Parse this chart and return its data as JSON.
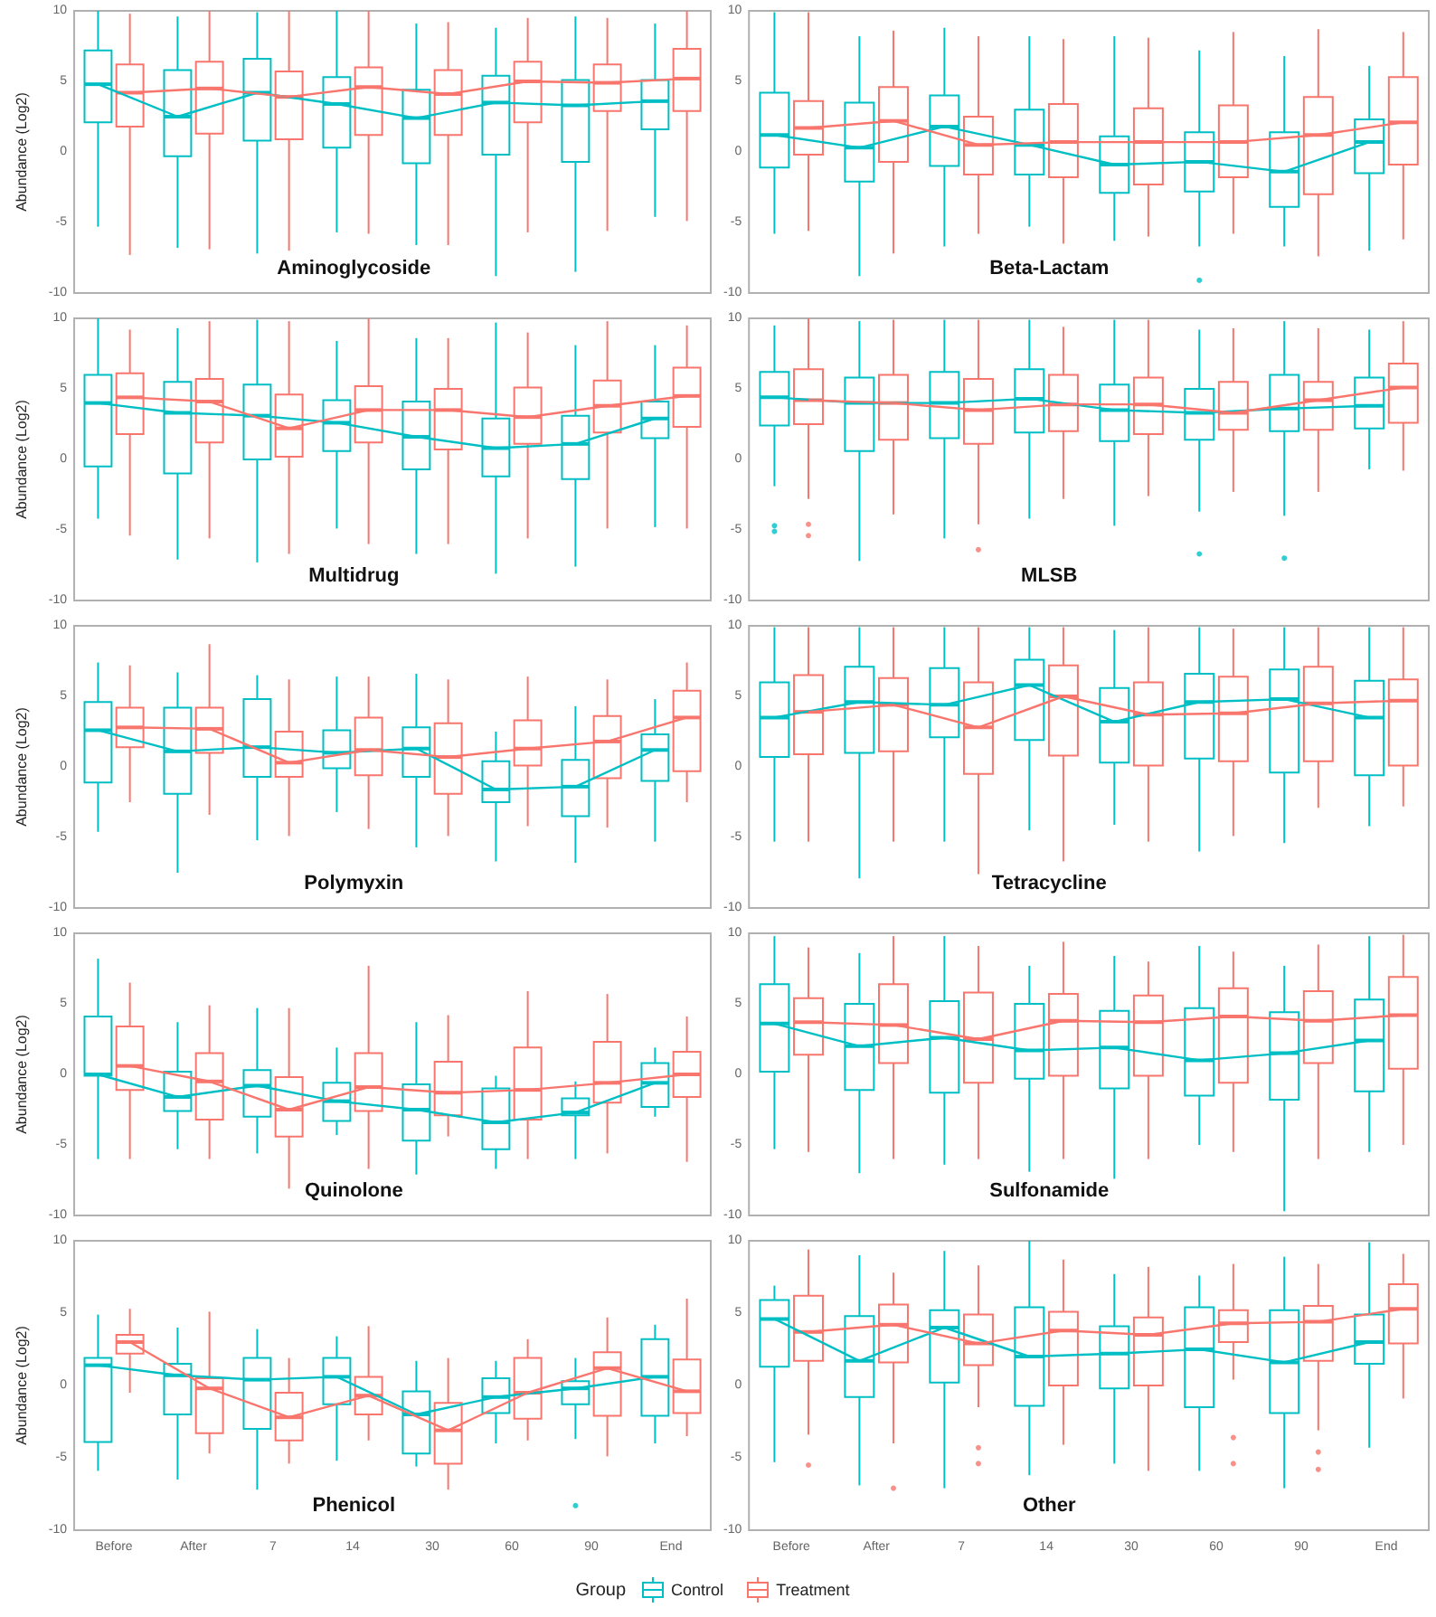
{
  "chart_data": [
    {
      "type": "box",
      "title": "Aminoglycoside",
      "ylabel": "Abundance (Log2)",
      "categories": [
        "Before",
        "After",
        "7",
        "14",
        "30",
        "60",
        "90",
        "End"
      ],
      "ylim": [
        -10,
        10
      ],
      "yticks": [
        -10,
        -5,
        0,
        5,
        10
      ],
      "grid": false,
      "tick_labels": "y",
      "legend": "bottom",
      "legend_title": "Group",
      "series": [
        {
          "name": "Control",
          "color": "#00bfc4",
          "boxes": [
            {
              "low": -5.3,
              "q1": 2.1,
              "median": 4.8,
              "q3": 7.2,
              "high": 10
            },
            {
              "low": -6.8,
              "q1": -0.3,
              "median": 2.5,
              "q3": 5.8,
              "high": 9.6
            },
            {
              "low": -7.2,
              "q1": 0.8,
              "median": 4.2,
              "q3": 6.6,
              "high": 9.9
            },
            {
              "low": -5.7,
              "q1": 0.3,
              "median": 3.4,
              "q3": 5.3,
              "high": 10
            },
            {
              "low": -6.6,
              "q1": -0.8,
              "median": 2.4,
              "q3": 4.4,
              "high": 9.1
            },
            {
              "low": -8.8,
              "q1": -0.2,
              "median": 3.5,
              "q3": 5.4,
              "high": 8.8
            },
            {
              "low": -8.5,
              "q1": -0.7,
              "median": 3.3,
              "q3": 5.1,
              "high": 9.6
            },
            {
              "low": -4.6,
              "q1": 1.6,
              "median": 3.6,
              "q3": 5.1,
              "high": 9.1
            }
          ]
        },
        {
          "name": "Treatment",
          "color": "#f8766d",
          "boxes": [
            {
              "low": -7.3,
              "q1": 1.8,
              "median": 4.2,
              "q3": 6.2,
              "high": 9.8
            },
            {
              "low": -6.9,
              "q1": 1.3,
              "median": 4.5,
              "q3": 6.4,
              "high": 10
            },
            {
              "low": -7,
              "q1": 0.9,
              "median": 3.9,
              "q3": 5.7,
              "high": 10
            },
            {
              "low": -5.8,
              "q1": 1.2,
              "median": 4.6,
              "q3": 6,
              "high": 10
            },
            {
              "low": -6.6,
              "q1": 1.2,
              "median": 4.1,
              "q3": 5.8,
              "high": 9.2
            },
            {
              "low": -5.7,
              "q1": 2.1,
              "median": 5,
              "q3": 6.4,
              "high": 9.5
            },
            {
              "low": -5.6,
              "q1": 2.9,
              "median": 4.9,
              "q3": 6.2,
              "high": 9.5
            },
            {
              "low": -4.9,
              "q1": 2.9,
              "median": 5.2,
              "q3": 7.3,
              "high": 10
            }
          ]
        },
        {
          "type": "line",
          "color": "#00bfc4",
          "values": [
            4.8,
            2.5,
            4.2,
            3.4,
            2.4,
            3.5,
            3.3,
            3.6
          ]
        },
        {
          "type": "line",
          "color": "#f8766d",
          "values": [
            4.2,
            4.5,
            3.9,
            4.6,
            4.1,
            5,
            4.9,
            5.2
          ]
        }
      ]
    },
    {
      "type": "box",
      "title": "Beta-Lactam",
      "categories": [
        "Before",
        "After",
        "7",
        "14",
        "30",
        "60",
        "90",
        "End"
      ],
      "ylim": [
        -10,
        10
      ],
      "yticks": [
        -10,
        -5,
        0,
        5,
        10
      ],
      "grid": false,
      "tick_labels": "y",
      "series": [
        {
          "name": "Control",
          "color": "#00bfc4",
          "boxes": [
            {
              "low": -5.8,
              "q1": -1.1,
              "median": 1.2,
              "q3": 4.2,
              "high": 9.9
            },
            {
              "low": -8.8,
              "q1": -2.1,
              "median": 0.3,
              "q3": 3.5,
              "high": 8.2
            },
            {
              "low": -6.7,
              "q1": -1,
              "median": 1.8,
              "q3": 4,
              "high": 8.8
            },
            {
              "low": -5.3,
              "q1": -1.6,
              "median": 0.5,
              "q3": 3,
              "high": 8.2
            },
            {
              "low": -6.3,
              "q1": -2.9,
              "median": -0.9,
              "q3": 1.1,
              "high": 8.2
            },
            {
              "low": -6.7,
              "q1": -2.8,
              "median": -0.7,
              "q3": 1.4,
              "high": 7.2,
              "outliers": [
                -9.1
              ]
            },
            {
              "low": -6.7,
              "q1": -3.9,
              "median": -1.4,
              "q3": 1.4,
              "high": 6.8
            },
            {
              "low": -7,
              "q1": -1.5,
              "median": 0.7,
              "q3": 2.3,
              "high": 6.1
            }
          ]
        },
        {
          "name": "Treatment",
          "color": "#f8766d",
          "boxes": [
            {
              "low": -5.6,
              "q1": -0.2,
              "median": 1.7,
              "q3": 3.6,
              "high": 9.9
            },
            {
              "low": -7.2,
              "q1": -0.7,
              "median": 2.2,
              "q3": 4.6,
              "high": 8.6
            },
            {
              "low": -5.8,
              "q1": -1.6,
              "median": 0.5,
              "q3": 2.5,
              "high": 8.2
            },
            {
              "low": -6.5,
              "q1": -1.8,
              "median": 0.7,
              "q3": 3.4,
              "high": 8
            },
            {
              "low": -6,
              "q1": -2.3,
              "median": 0.7,
              "q3": 3.1,
              "high": 8.1
            },
            {
              "low": -5.8,
              "q1": -1.8,
              "median": 0.7,
              "q3": 3.3,
              "high": 8.5
            },
            {
              "low": -7.4,
              "q1": -3,
              "median": 1.2,
              "q3": 3.9,
              "high": 8.7
            },
            {
              "low": -6.2,
              "q1": -0.9,
              "median": 2.1,
              "q3": 5.3,
              "high": 8.5
            }
          ]
        },
        {
          "type": "line",
          "color": "#00bfc4",
          "values": [
            1.2,
            0.3,
            1.8,
            0.5,
            -0.9,
            -0.7,
            -1.4,
            0.7
          ]
        },
        {
          "type": "line",
          "color": "#f8766d",
          "values": [
            1.7,
            2.2,
            0.5,
            0.7,
            0.7,
            0.7,
            1.2,
            2.1
          ]
        }
      ]
    },
    {
      "type": "box",
      "title": "Multidrug",
      "ylabel": "Abundance (Log2)",
      "categories": [
        "Before",
        "After",
        "7",
        "14",
        "30",
        "60",
        "90",
        "End"
      ],
      "ylim": [
        -10,
        10
      ],
      "yticks": [
        -10,
        -5,
        0,
        5,
        10
      ],
      "grid": false,
      "tick_labels": "y",
      "series": [
        {
          "name": "Control",
          "color": "#00bfc4",
          "boxes": [
            {
              "low": -4.2,
              "q1": -0.5,
              "median": 4,
              "q3": 6,
              "high": 10
            },
            {
              "low": -7.1,
              "q1": -1,
              "median": 3.3,
              "q3": 5.5,
              "high": 9.3
            },
            {
              "low": -7.3,
              "q1": 0,
              "median": 3.1,
              "q3": 5.3,
              "high": 9.9
            },
            {
              "low": -4.9,
              "q1": 0.6,
              "median": 2.6,
              "q3": 4.2,
              "high": 8.4
            },
            {
              "low": -6.7,
              "q1": -0.7,
              "median": 1.6,
              "q3": 4.1,
              "high": 8.6
            },
            {
              "low": -8.1,
              "q1": -1.2,
              "median": 0.8,
              "q3": 2.9,
              "high": 9.7
            },
            {
              "low": -7.6,
              "q1": -1.4,
              "median": 1.1,
              "q3": 3.1,
              "high": 8.1
            },
            {
              "low": -4.8,
              "q1": 1.5,
              "median": 2.9,
              "q3": 4.1,
              "high": 8.1
            }
          ]
        },
        {
          "name": "Treatment",
          "color": "#f8766d",
          "boxes": [
            {
              "low": -5.4,
              "q1": 1.8,
              "median": 4.4,
              "q3": 6.1,
              "high": 9.2
            },
            {
              "low": -5.6,
              "q1": 1.2,
              "median": 4.1,
              "q3": 5.7,
              "high": 9.8
            },
            {
              "low": -6.7,
              "q1": 0.2,
              "median": 2.2,
              "q3": 4.6,
              "high": 9.8
            },
            {
              "low": -6,
              "q1": 1.2,
              "median": 3.5,
              "q3": 5.2,
              "high": 10
            },
            {
              "low": -6,
              "q1": 0.7,
              "median": 3.5,
              "q3": 5,
              "high": 8.6
            },
            {
              "low": -5.6,
              "q1": 1.1,
              "median": 3,
              "q3": 5.1,
              "high": 9
            },
            {
              "low": -4.9,
              "q1": 1.9,
              "median": 3.8,
              "q3": 5.6,
              "high": 9.8
            },
            {
              "low": -4.9,
              "q1": 2.3,
              "median": 4.5,
              "q3": 6.5,
              "high": 9.5
            }
          ]
        },
        {
          "type": "line",
          "color": "#00bfc4",
          "values": [
            4,
            3.3,
            3.1,
            2.6,
            1.6,
            0.8,
            1.1,
            2.9
          ]
        },
        {
          "type": "line",
          "color": "#f8766d",
          "values": [
            4.4,
            4.1,
            2.2,
            3.5,
            3.5,
            3,
            3.8,
            4.5
          ]
        }
      ]
    },
    {
      "type": "box",
      "title": "MLSB",
      "categories": [
        "Before",
        "After",
        "7",
        "14",
        "30",
        "60",
        "90",
        "End"
      ],
      "ylim": [
        -10,
        10
      ],
      "yticks": [
        -10,
        -5,
        0,
        5,
        10
      ],
      "grid": false,
      "tick_labels": "y",
      "series": [
        {
          "name": "Control",
          "color": "#00bfc4",
          "boxes": [
            {
              "low": -1.9,
              "q1": 2.4,
              "median": 4.4,
              "q3": 6.2,
              "high": 9.5,
              "outliers": [
                -4.7,
                -5.1
              ]
            },
            {
              "low": -7.2,
              "q1": 0.6,
              "median": 4,
              "q3": 5.8,
              "high": 9.8
            },
            {
              "low": -5.6,
              "q1": 1.5,
              "median": 4,
              "q3": 6.2,
              "high": 9.9
            },
            {
              "low": -4.2,
              "q1": 1.9,
              "median": 4.3,
              "q3": 6.4,
              "high": 9.9
            },
            {
              "low": -4.7,
              "q1": 1.3,
              "median": 3.5,
              "q3": 5.3,
              "high": 9.9
            },
            {
              "low": -3.7,
              "q1": 1.4,
              "median": 3.3,
              "q3": 5,
              "high": 9.2,
              "outliers": [
                -6.7
              ]
            },
            {
              "low": -4,
              "q1": 2,
              "median": 3.6,
              "q3": 6,
              "high": 9.8,
              "outliers": [
                -7
              ]
            },
            {
              "low": -0.7,
              "q1": 2.2,
              "median": 3.8,
              "q3": 5.8,
              "high": 9.2
            }
          ]
        },
        {
          "name": "Treatment",
          "color": "#f8766d",
          "boxes": [
            {
              "low": -2.8,
              "q1": 2.5,
              "median": 4.2,
              "q3": 6.4,
              "high": 10,
              "outliers": [
                -4.6,
                -5.4
              ]
            },
            {
              "low": -3.9,
              "q1": 1.4,
              "median": 4,
              "q3": 6,
              "high": 9.9
            },
            {
              "low": -4.6,
              "q1": 1.1,
              "median": 3.5,
              "q3": 5.7,
              "high": 9.9,
              "outliers": [
                -6.4
              ]
            },
            {
              "low": -2.8,
              "q1": 2,
              "median": 3.9,
              "q3": 6,
              "high": 9.4
            },
            {
              "low": -2.6,
              "q1": 1.8,
              "median": 3.9,
              "q3": 5.8,
              "high": 9.9
            },
            {
              "low": -2.3,
              "q1": 2.1,
              "median": 3.3,
              "q3": 5.5,
              "high": 9.3
            },
            {
              "low": -2.3,
              "q1": 2.1,
              "median": 4.2,
              "q3": 5.5,
              "high": 9.3
            },
            {
              "low": -0.8,
              "q1": 2.6,
              "median": 5.1,
              "q3": 6.8,
              "high": 9.8
            }
          ]
        },
        {
          "type": "line",
          "color": "#00bfc4",
          "values": [
            4.4,
            4,
            4,
            4.3,
            3.5,
            3.3,
            3.6,
            3.8
          ]
        },
        {
          "type": "line",
          "color": "#f8766d",
          "values": [
            4.2,
            4,
            3.5,
            3.9,
            3.9,
            3.3,
            4.2,
            5.1
          ]
        }
      ]
    },
    {
      "type": "box",
      "title": "Polymyxin",
      "ylabel": "Abundance (Log2)",
      "categories": [
        "Before",
        "After",
        "7",
        "14",
        "30",
        "60",
        "90",
        "End"
      ],
      "ylim": [
        -10,
        10
      ],
      "yticks": [
        -10,
        -5,
        0,
        5,
        10
      ],
      "grid": false,
      "tick_labels": "y",
      "series": [
        {
          "name": "Control",
          "color": "#00bfc4",
          "boxes": [
            {
              "low": -4.6,
              "q1": -1.1,
              "median": 2.6,
              "q3": 4.6,
              "high": 7.4
            },
            {
              "low": -7.5,
              "q1": -1.9,
              "median": 1.1,
              "q3": 4.2,
              "high": 6.7
            },
            {
              "low": -5.2,
              "q1": -0.7,
              "median": 1.4,
              "q3": 4.8,
              "high": 6.5
            },
            {
              "low": -3.2,
              "q1": -0.1,
              "median": 1,
              "q3": 2.6,
              "high": 6.4
            },
            {
              "low": -5.7,
              "q1": -0.7,
              "median": 1.3,
              "q3": 2.8,
              "high": 6.6
            },
            {
              "low": -6.7,
              "q1": -2.5,
              "median": -1.6,
              "q3": 0.4,
              "high": 2.5
            },
            {
              "low": -6.8,
              "q1": -3.5,
              "median": -1.4,
              "q3": 0.5,
              "high": 4.3
            },
            {
              "low": -5.3,
              "q1": -1,
              "median": 1.2,
              "q3": 2.3,
              "high": 4.8
            }
          ]
        },
        {
          "name": "Treatment",
          "color": "#f8766d",
          "boxes": [
            {
              "low": -2.5,
              "q1": 1.4,
              "median": 2.8,
              "q3": 4.2,
              "high": 7.2
            },
            {
              "low": -3.4,
              "q1": 1,
              "median": 2.7,
              "q3": 4.2,
              "high": 8.7
            },
            {
              "low": -4.9,
              "q1": -0.7,
              "median": 0.3,
              "q3": 2.5,
              "high": 6.2
            },
            {
              "low": -4.4,
              "q1": -0.6,
              "median": 1.2,
              "q3": 3.5,
              "high": 6.4
            },
            {
              "low": -4.9,
              "q1": -1.9,
              "median": 0.7,
              "q3": 3.1,
              "high": 6.2
            },
            {
              "low": -4.2,
              "q1": 0.1,
              "median": 1.3,
              "q3": 3.3,
              "high": 6.4
            },
            {
              "low": -4.3,
              "q1": -0.8,
              "median": 1.8,
              "q3": 3.6,
              "high": 6.2
            },
            {
              "low": -2.5,
              "q1": -0.3,
              "median": 3.5,
              "q3": 5.4,
              "high": 7.4
            }
          ]
        },
        {
          "type": "line",
          "color": "#00bfc4",
          "values": [
            2.6,
            1.1,
            1.4,
            1,
            1.3,
            -1.6,
            -1.4,
            1.2
          ]
        },
        {
          "type": "line",
          "color": "#f8766d",
          "values": [
            2.8,
            2.7,
            0.3,
            1.2,
            0.7,
            1.3,
            1.8,
            3.5
          ]
        }
      ]
    },
    {
      "type": "box",
      "title": "Tetracycline",
      "categories": [
        "Before",
        "After",
        "7",
        "14",
        "30",
        "60",
        "90",
        "End"
      ],
      "ylim": [
        -10,
        10
      ],
      "yticks": [
        -10,
        -5,
        0,
        5,
        10
      ],
      "grid": false,
      "tick_labels": "y",
      "series": [
        {
          "name": "Control",
          "color": "#00bfc4",
          "boxes": [
            {
              "low": -5.3,
              "q1": 0.7,
              "median": 3.5,
              "q3": 6,
              "high": 9.9
            },
            {
              "low": -7.9,
              "q1": 1,
              "median": 4.6,
              "q3": 7.1,
              "high": 9.9
            },
            {
              "low": -5.3,
              "q1": 2.1,
              "median": 4.4,
              "q3": 7,
              "high": 9.9
            },
            {
              "low": -4.5,
              "q1": 1.9,
              "median": 5.8,
              "q3": 7.6,
              "high": 9.9
            },
            {
              "low": -4.1,
              "q1": 0.3,
              "median": 3.2,
              "q3": 5.6,
              "high": 9.7
            },
            {
              "low": -6,
              "q1": 0.6,
              "median": 4.6,
              "q3": 6.6,
              "high": 9.9
            },
            {
              "low": -5.4,
              "q1": -0.4,
              "median": 4.8,
              "q3": 6.9,
              "high": 9.9
            },
            {
              "low": -4.2,
              "q1": -0.6,
              "median": 3.5,
              "q3": 6.1,
              "high": 9.9
            }
          ]
        },
        {
          "name": "Treatment",
          "color": "#f8766d",
          "boxes": [
            {
              "low": -5.3,
              "q1": 0.9,
              "median": 3.9,
              "q3": 6.5,
              "high": 9.9
            },
            {
              "low": -5.3,
              "q1": 1.1,
              "median": 4.4,
              "q3": 6.3,
              "high": 9.9
            },
            {
              "low": -7.6,
              "q1": -0.5,
              "median": 2.8,
              "q3": 6,
              "high": 9.9
            },
            {
              "low": -6.7,
              "q1": 0.8,
              "median": 5,
              "q3": 7.2,
              "high": 9.9
            },
            {
              "low": -5.3,
              "q1": 0.1,
              "median": 3.7,
              "q3": 6,
              "high": 9.9
            },
            {
              "low": -4.9,
              "q1": 0.4,
              "median": 3.8,
              "q3": 6.4,
              "high": 9.8
            },
            {
              "low": -2.9,
              "q1": 0.4,
              "median": 4.5,
              "q3": 7.1,
              "high": 9.9
            },
            {
              "low": -2.8,
              "q1": 0.1,
              "median": 4.7,
              "q3": 6.2,
              "high": 9.9
            }
          ]
        },
        {
          "type": "line",
          "color": "#00bfc4",
          "values": [
            3.5,
            4.6,
            4.4,
            5.8,
            3.2,
            4.6,
            4.8,
            3.5
          ]
        },
        {
          "type": "line",
          "color": "#f8766d",
          "values": [
            3.9,
            4.4,
            2.8,
            5,
            3.7,
            3.8,
            4.5,
            4.7
          ]
        }
      ]
    },
    {
      "type": "box",
      "title": "Quinolone",
      "ylabel": "Abundance (Log2)",
      "categories": [
        "Before",
        "After",
        "7",
        "14",
        "30",
        "60",
        "90",
        "End"
      ],
      "ylim": [
        -10,
        10
      ],
      "yticks": [
        -10,
        -5,
        0,
        5,
        10
      ],
      "grid": false,
      "tick_labels": "y",
      "series": [
        {
          "name": "Control",
          "color": "#00bfc4",
          "boxes": [
            {
              "low": -6,
              "q1": -0.1,
              "median": 0,
              "q3": 4.1,
              "high": 8.2
            },
            {
              "low": -5.3,
              "q1": -2.6,
              "median": -1.6,
              "q3": 0.2,
              "high": 3.7
            },
            {
              "low": -5.6,
              "q1": -3,
              "median": -0.8,
              "q3": 0.3,
              "high": 4.7
            },
            {
              "low": -4.3,
              "q1": -3.3,
              "median": -1.9,
              "q3": -0.6,
              "high": 1.9
            },
            {
              "low": -7.1,
              "q1": -4.7,
              "median": -2.5,
              "q3": -0.7,
              "high": 3.7
            },
            {
              "low": -6.7,
              "q1": -5.3,
              "median": -3.4,
              "q3": -1,
              "high": -0.1
            },
            {
              "low": -6,
              "q1": -2.9,
              "median": -2.7,
              "q3": -1.7,
              "high": -0.5
            },
            {
              "low": -3,
              "q1": -2.3,
              "median": -0.6,
              "q3": 0.8,
              "high": 1.9
            }
          ]
        },
        {
          "name": "Treatment",
          "color": "#f8766d",
          "boxes": [
            {
              "low": -6,
              "q1": -1.1,
              "median": 0.6,
              "q3": 3.4,
              "high": 6.5
            },
            {
              "low": -6,
              "q1": -3.2,
              "median": -0.5,
              "q3": 1.5,
              "high": 4.9
            },
            {
              "low": -8.1,
              "q1": -4.4,
              "median": -2.5,
              "q3": -0.2,
              "high": 4.7
            },
            {
              "low": -6.7,
              "q1": -2.6,
              "median": -0.9,
              "q3": 1.5,
              "high": 7.7
            },
            {
              "low": -4.4,
              "q1": -2.9,
              "median": -1.3,
              "q3": 0.9,
              "high": 4.2
            },
            {
              "low": -6,
              "q1": -3.2,
              "median": -1.1,
              "q3": 1.9,
              "high": 5.9
            },
            {
              "low": -5.6,
              "q1": -2,
              "median": -0.6,
              "q3": 2.3,
              "high": 5.7
            },
            {
              "low": -6.2,
              "q1": -1.6,
              "median": 0,
              "q3": 1.6,
              "high": 4.1
            }
          ]
        },
        {
          "type": "line",
          "color": "#00bfc4",
          "values": [
            0,
            -1.6,
            -0.8,
            -1.9,
            -2.5,
            -3.4,
            -2.7,
            -0.6
          ]
        },
        {
          "type": "line",
          "color": "#f8766d",
          "values": [
            0.6,
            -0.5,
            -2.5,
            -0.9,
            -1.3,
            -1.1,
            -0.6,
            0
          ]
        }
      ]
    },
    {
      "type": "box",
      "title": "Sulfonamide",
      "categories": [
        "Before",
        "After",
        "7",
        "14",
        "30",
        "60",
        "90",
        "End"
      ],
      "ylim": [
        -10,
        10
      ],
      "yticks": [
        -10,
        -5,
        0,
        5,
        10
      ],
      "grid": false,
      "tick_labels": "y",
      "series": [
        {
          "name": "Control",
          "color": "#00bfc4",
          "boxes": [
            {
              "low": -5.3,
              "q1": 0.2,
              "median": 3.6,
              "q3": 6.4,
              "high": 9.8
            },
            {
              "low": -7,
              "q1": -1.1,
              "median": 2,
              "q3": 5,
              "high": 8.6
            },
            {
              "low": -6.4,
              "q1": -1.3,
              "median": 2.6,
              "q3": 5.2,
              "high": 9.8
            },
            {
              "low": -6.9,
              "q1": -0.3,
              "median": 1.7,
              "q3": 5,
              "high": 7.7
            },
            {
              "low": -7.4,
              "q1": -1,
              "median": 1.9,
              "q3": 4.5,
              "high": 8.4
            },
            {
              "low": -5,
              "q1": -1.5,
              "median": 1,
              "q3": 4.7,
              "high": 9.1
            },
            {
              "low": -9.7,
              "q1": -1.8,
              "median": 1.5,
              "q3": 4.4,
              "high": 7.7
            },
            {
              "low": -5.5,
              "q1": -1.2,
              "median": 2.4,
              "q3": 5.3,
              "high": 9.8
            }
          ]
        },
        {
          "name": "Treatment",
          "color": "#f8766d",
          "boxes": [
            {
              "low": -5.5,
              "q1": 1.4,
              "median": 3.7,
              "q3": 5.4,
              "high": 9
            },
            {
              "low": -6,
              "q1": 0.8,
              "median": 3.5,
              "q3": 6.4,
              "high": 9.8
            },
            {
              "low": -6,
              "q1": -0.6,
              "median": 2.5,
              "q3": 5.8,
              "high": 9.1
            },
            {
              "low": -6,
              "q1": -0.1,
              "median": 3.8,
              "q3": 5.7,
              "high": 9.4
            },
            {
              "low": -6,
              "q1": -0.1,
              "median": 3.7,
              "q3": 5.6,
              "high": 8
            },
            {
              "low": -5.5,
              "q1": -0.6,
              "median": 4.1,
              "q3": 6.1,
              "high": 8.7
            },
            {
              "low": -6,
              "q1": 0.8,
              "median": 3.8,
              "q3": 5.9,
              "high": 9.2
            },
            {
              "low": -5,
              "q1": 0.4,
              "median": 4.2,
              "q3": 6.9,
              "high": 9.9
            }
          ]
        },
        {
          "type": "line",
          "color": "#00bfc4",
          "values": [
            3.6,
            2,
            2.6,
            1.7,
            1.9,
            1,
            1.5,
            2.4
          ]
        },
        {
          "type": "line",
          "color": "#f8766d",
          "values": [
            3.7,
            3.5,
            2.5,
            3.8,
            3.7,
            4.1,
            3.8,
            4.2
          ]
        }
      ]
    },
    {
      "type": "box",
      "title": "Phenicol",
      "ylabel": "Abundance (Log2)",
      "categories": [
        "Before",
        "After",
        "7",
        "14",
        "30",
        "60",
        "90",
        "End"
      ],
      "ylim": [
        -10,
        10
      ],
      "yticks": [
        -10,
        -5,
        0,
        5,
        10
      ],
      "grid": false,
      "series": [
        {
          "name": "Control",
          "color": "#00bfc4",
          "boxes": [
            {
              "low": -5.9,
              "q1": -3.9,
              "median": 1.4,
              "q3": 1.9,
              "high": 4.9
            },
            {
              "low": -6.5,
              "q1": -2,
              "median": 0.7,
              "q3": 1.5,
              "high": 4
            },
            {
              "low": -7.2,
              "q1": -3,
              "median": 0.4,
              "q3": 1.9,
              "high": 3.9
            },
            {
              "low": -5.2,
              "q1": -1.3,
              "median": 0.6,
              "q3": 1.9,
              "high": 3.4
            },
            {
              "low": -5.6,
              "q1": -4.7,
              "median": -2,
              "q3": -0.4,
              "high": 1.7
            },
            {
              "low": -4,
              "q1": -1.9,
              "median": -0.8,
              "q3": 0.5,
              "high": 1.7
            },
            {
              "low": -3.7,
              "q1": -1.3,
              "median": -0.2,
              "q3": 0.3,
              "high": 1.9,
              "outliers": [
                -8.3
              ]
            },
            {
              "low": -4,
              "q1": -2.1,
              "median": 0.6,
              "q3": 3.2,
              "high": 4.2
            }
          ]
        },
        {
          "name": "Treatment",
          "color": "#f8766d",
          "boxes": [
            {
              "low": -0.5,
              "q1": 2.2,
              "median": 3,
              "q3": 3.5,
              "high": 5.3
            },
            {
              "low": -4.7,
              "q1": -3.3,
              "median": -0.2,
              "q3": 0.5,
              "high": 5.1
            },
            {
              "low": -5.4,
              "q1": -3.8,
              "median": -2.2,
              "q3": -0.5,
              "high": 1.9
            },
            {
              "low": -3.8,
              "q1": -2,
              "median": -0.7,
              "q3": 0.6,
              "high": 4.1
            },
            {
              "low": -7.2,
              "q1": -5.4,
              "median": -3.1,
              "q3": -1.2,
              "high": 1.9
            },
            {
              "low": -3.8,
              "q1": -2.3,
              "median": -0.5,
              "q3": 1.9,
              "high": 3.2
            },
            {
              "low": -4.9,
              "q1": -2.1,
              "median": 1.2,
              "q3": 2.3,
              "high": 4.7
            },
            {
              "low": -3.5,
              "q1": -1.9,
              "median": -0.4,
              "q3": 1.8,
              "high": 6
            }
          ]
        },
        {
          "type": "line",
          "color": "#00bfc4",
          "values": [
            1.4,
            0.7,
            0.4,
            0.6,
            -2,
            -0.8,
            -0.2,
            0.6
          ]
        },
        {
          "type": "line",
          "color": "#f8766d",
          "values": [
            3,
            -0.2,
            -2.2,
            -0.7,
            -3.1,
            -0.5,
            1.2,
            -0.4
          ]
        }
      ]
    },
    {
      "type": "box",
      "title": "Other",
      "categories": [
        "Before",
        "After",
        "7",
        "14",
        "30",
        "60",
        "90",
        "End"
      ],
      "ylim": [
        -10,
        10
      ],
      "yticks": [
        -10,
        -5,
        0,
        5,
        10
      ],
      "grid": false,
      "series": [
        {
          "name": "Control",
          "color": "#00bfc4",
          "boxes": [
            {
              "low": -5.3,
              "q1": 1.3,
              "median": 4.6,
              "q3": 5.9,
              "high": 6.9
            },
            {
              "low": -6.9,
              "q1": -0.8,
              "median": 1.7,
              "q3": 4.8,
              "high": 9
            },
            {
              "low": -7.1,
              "q1": 0.2,
              "median": 4,
              "q3": 5.2,
              "high": 9.3
            },
            {
              "low": -6.2,
              "q1": -1.4,
              "median": 2,
              "q3": 5.4,
              "high": 10
            },
            {
              "low": -5.4,
              "q1": -0.2,
              "median": 2.2,
              "q3": 4.1,
              "high": 7.7
            },
            {
              "low": -5.9,
              "q1": -1.5,
              "median": 2.5,
              "q3": 5.4,
              "high": 7.6
            },
            {
              "low": -7.1,
              "q1": -1.9,
              "median": 1.6,
              "q3": 5.2,
              "high": 8.9
            },
            {
              "low": -4.3,
              "q1": 1.5,
              "median": 3,
              "q3": 4.9,
              "high": 9.9
            }
          ]
        },
        {
          "name": "Treatment",
          "color": "#f8766d",
          "boxes": [
            {
              "low": -3.4,
              "q1": 1.7,
              "median": 3.7,
              "q3": 6.2,
              "high": 9.4,
              "outliers": [
                -5.5
              ]
            },
            {
              "low": -4,
              "q1": 1.6,
              "median": 4.2,
              "q3": 5.6,
              "high": 7.8,
              "outliers": [
                -7.1
              ]
            },
            {
              "low": -1.5,
              "q1": 1.4,
              "median": 2.9,
              "q3": 4.9,
              "high": 8.3,
              "outliers": [
                -4.3,
                -5.4
              ]
            },
            {
              "low": -4.1,
              "q1": 0,
              "median": 3.8,
              "q3": 5.1,
              "high": 8.7
            },
            {
              "low": -5.9,
              "q1": 0,
              "median": 3.5,
              "q3": 4.7,
              "high": 8.2
            },
            {
              "low": 0.4,
              "q1": 3,
              "median": 4.3,
              "q3": 5.2,
              "high": 8.4,
              "outliers": [
                -3.6,
                -5.4
              ]
            },
            {
              "low": -3.1,
              "q1": 1.7,
              "median": 4.4,
              "q3": 5.5,
              "high": 8.4,
              "outliers": [
                -4.6,
                -5.8
              ]
            },
            {
              "low": -0.9,
              "q1": 2.9,
              "median": 5.3,
              "q3": 7,
              "high": 9.1
            }
          ]
        },
        {
          "type": "line",
          "color": "#00bfc4",
          "values": [
            4.6,
            1.7,
            4,
            2,
            2.2,
            2.5,
            1.6,
            3
          ]
        },
        {
          "type": "line",
          "color": "#f8766d",
          "values": [
            3.7,
            4.2,
            2.9,
            3.8,
            3.5,
            4.3,
            4.4,
            5.3
          ]
        }
      ]
    }
  ]
}
